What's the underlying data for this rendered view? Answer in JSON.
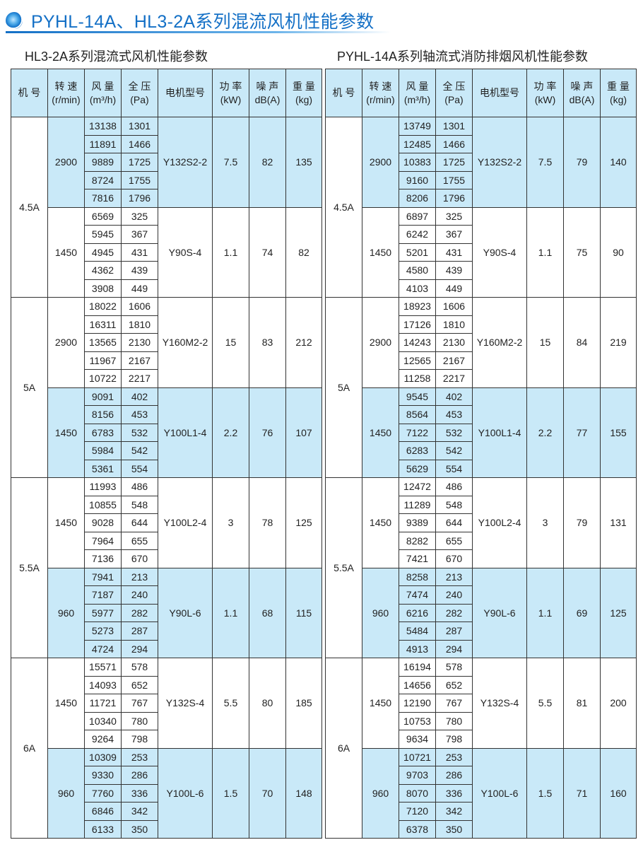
{
  "page_title": "PYHL-14A、HL3-2A系列混流风机性能参数",
  "colors": {
    "accent": "#1470c6",
    "shade": "#c9e9f8"
  },
  "headers": [
    [
      "机 号",
      ""
    ],
    [
      "转 速",
      "(r/min)"
    ],
    [
      "风 量",
      "(m³/h)"
    ],
    [
      "全 压",
      "(Pa)"
    ],
    [
      "电机型号",
      ""
    ],
    [
      "功 率",
      "(kW)"
    ],
    [
      "噪 声",
      "dB(A)"
    ],
    [
      "重 量",
      "(kg)"
    ]
  ],
  "tables": [
    {
      "title": "HL3-2A系列混流式风机性能参数",
      "machines": [
        {
          "no": "4.5A",
          "groups": [
            {
              "speed": "2900",
              "motor": "Y132S2-2",
              "power": "7.5",
              "noise": "82",
              "weight": "135",
              "shaded": true,
              "rows": [
                [
                  "13138",
                  "1301"
                ],
                [
                  "11891",
                  "1466"
                ],
                [
                  "9889",
                  "1725"
                ],
                [
                  "8724",
                  "1755"
                ],
                [
                  "7816",
                  "1796"
                ]
              ]
            },
            {
              "speed": "1450",
              "motor": "Y90S-4",
              "power": "1.1",
              "noise": "74",
              "weight": "82",
              "shaded": false,
              "rows": [
                [
                  "6569",
                  "325"
                ],
                [
                  "5945",
                  "367"
                ],
                [
                  "4945",
                  "431"
                ],
                [
                  "4362",
                  "439"
                ],
                [
                  "3908",
                  "449"
                ]
              ]
            }
          ]
        },
        {
          "no": "5A",
          "groups": [
            {
              "speed": "2900",
              "motor": "Y160M2-2",
              "power": "15",
              "noise": "83",
              "weight": "212",
              "shaded": false,
              "rows": [
                [
                  "18022",
                  "1606"
                ],
                [
                  "16311",
                  "1810"
                ],
                [
                  "13565",
                  "2130"
                ],
                [
                  "11967",
                  "2167"
                ],
                [
                  "10722",
                  "2217"
                ]
              ]
            },
            {
              "speed": "1450",
              "motor": "Y100L1-4",
              "power": "2.2",
              "noise": "76",
              "weight": "107",
              "shaded": true,
              "rows": [
                [
                  "9091",
                  "402"
                ],
                [
                  "8156",
                  "453"
                ],
                [
                  "6783",
                  "532"
                ],
                [
                  "5984",
                  "542"
                ],
                [
                  "5361",
                  "554"
                ]
              ]
            }
          ]
        },
        {
          "no": "5.5A",
          "groups": [
            {
              "speed": "1450",
              "motor": "Y100L2-4",
              "power": "3",
              "noise": "78",
              "weight": "125",
              "shaded": false,
              "rows": [
                [
                  "11993",
                  "486"
                ],
                [
                  "10855",
                  "548"
                ],
                [
                  "9028",
                  "644"
                ],
                [
                  "7964",
                  "655"
                ],
                [
                  "7136",
                  "670"
                ]
              ]
            },
            {
              "speed": "960",
              "motor": "Y90L-6",
              "power": "1.1",
              "noise": "68",
              "weight": "115",
              "shaded": true,
              "rows": [
                [
                  "7941",
                  "213"
                ],
                [
                  "7187",
                  "240"
                ],
                [
                  "5977",
                  "282"
                ],
                [
                  "5273",
                  "287"
                ],
                [
                  "4724",
                  "294"
                ]
              ]
            }
          ]
        },
        {
          "no": "6A",
          "groups": [
            {
              "speed": "1450",
              "motor": "Y132S-4",
              "power": "5.5",
              "noise": "80",
              "weight": "185",
              "shaded": false,
              "rows": [
                [
                  "15571",
                  "578"
                ],
                [
                  "14093",
                  "652"
                ],
                [
                  "11721",
                  "767"
                ],
                [
                  "10340",
                  "780"
                ],
                [
                  "9264",
                  "798"
                ]
              ]
            },
            {
              "speed": "960",
              "motor": "Y100L-6",
              "power": "1.5",
              "noise": "70",
              "weight": "148",
              "shaded": true,
              "rows": [
                [
                  "10309",
                  "253"
                ],
                [
                  "9330",
                  "286"
                ],
                [
                  "7760",
                  "336"
                ],
                [
                  "6846",
                  "342"
                ],
                [
                  "6133",
                  "350"
                ]
              ]
            }
          ]
        }
      ]
    },
    {
      "title": "PYHL-14A系列轴流式消防排烟风机性能参数",
      "machines": [
        {
          "no": "4.5A",
          "groups": [
            {
              "speed": "2900",
              "motor": "Y132S2-2",
              "power": "7.5",
              "noise": "79",
              "weight": "140",
              "shaded": true,
              "rows": [
                [
                  "13749",
                  "1301"
                ],
                [
                  "12485",
                  "1466"
                ],
                [
                  "10383",
                  "1725"
                ],
                [
                  "9160",
                  "1755"
                ],
                [
                  "8206",
                  "1796"
                ]
              ]
            },
            {
              "speed": "1450",
              "motor": "Y90S-4",
              "power": "1.1",
              "noise": "75",
              "weight": "90",
              "shaded": false,
              "rows": [
                [
                  "6897",
                  "325"
                ],
                [
                  "6242",
                  "367"
                ],
                [
                  "5201",
                  "431"
                ],
                [
                  "4580",
                  "439"
                ],
                [
                  "4103",
                  "449"
                ]
              ]
            }
          ]
        },
        {
          "no": "5A",
          "groups": [
            {
              "speed": "2900",
              "motor": "Y160M2-2",
              "power": "15",
              "noise": "84",
              "weight": "219",
              "shaded": false,
              "rows": [
                [
                  "18923",
                  "1606"
                ],
                [
                  "17126",
                  "1810"
                ],
                [
                  "14243",
                  "2130"
                ],
                [
                  "12565",
                  "2167"
                ],
                [
                  "11258",
                  "2217"
                ]
              ]
            },
            {
              "speed": "1450",
              "motor": "Y100L1-4",
              "power": "2.2",
              "noise": "77",
              "weight": "155",
              "shaded": true,
              "rows": [
                [
                  "9545",
                  "402"
                ],
                [
                  "8564",
                  "453"
                ],
                [
                  "7122",
                  "532"
                ],
                [
                  "6283",
                  "542"
                ],
                [
                  "5629",
                  "554"
                ]
              ]
            }
          ]
        },
        {
          "no": "5.5A",
          "groups": [
            {
              "speed": "1450",
              "motor": "Y100L2-4",
              "power": "3",
              "noise": "79",
              "weight": "131",
              "shaded": false,
              "rows": [
                [
                  "12472",
                  "486"
                ],
                [
                  "11289",
                  "548"
                ],
                [
                  "9389",
                  "644"
                ],
                [
                  "8282",
                  "655"
                ],
                [
                  "7421",
                  "670"
                ]
              ]
            },
            {
              "speed": "960",
              "motor": "Y90L-6",
              "power": "1.1",
              "noise": "69",
              "weight": "125",
              "shaded": true,
              "rows": [
                [
                  "8258",
                  "213"
                ],
                [
                  "7474",
                  "240"
                ],
                [
                  "6216",
                  "282"
                ],
                [
                  "5484",
                  "287"
                ],
                [
                  "4913",
                  "294"
                ]
              ]
            }
          ]
        },
        {
          "no": "6A",
          "groups": [
            {
              "speed": "1450",
              "motor": "Y132S-4",
              "power": "5.5",
              "noise": "81",
              "weight": "200",
              "shaded": false,
              "rows": [
                [
                  "16194",
                  "578"
                ],
                [
                  "14656",
                  "652"
                ],
                [
                  "12190",
                  "767"
                ],
                [
                  "10753",
                  "780"
                ],
                [
                  "9634",
                  "798"
                ]
              ]
            },
            {
              "speed": "960",
              "motor": "Y100L-6",
              "power": "1.5",
              "noise": "71",
              "weight": "160",
              "shaded": true,
              "rows": [
                [
                  "10721",
                  "253"
                ],
                [
                  "9703",
                  "286"
                ],
                [
                  "8070",
                  "336"
                ],
                [
                  "7120",
                  "342"
                ],
                [
                  "6378",
                  "350"
                ]
              ]
            }
          ]
        }
      ]
    }
  ]
}
